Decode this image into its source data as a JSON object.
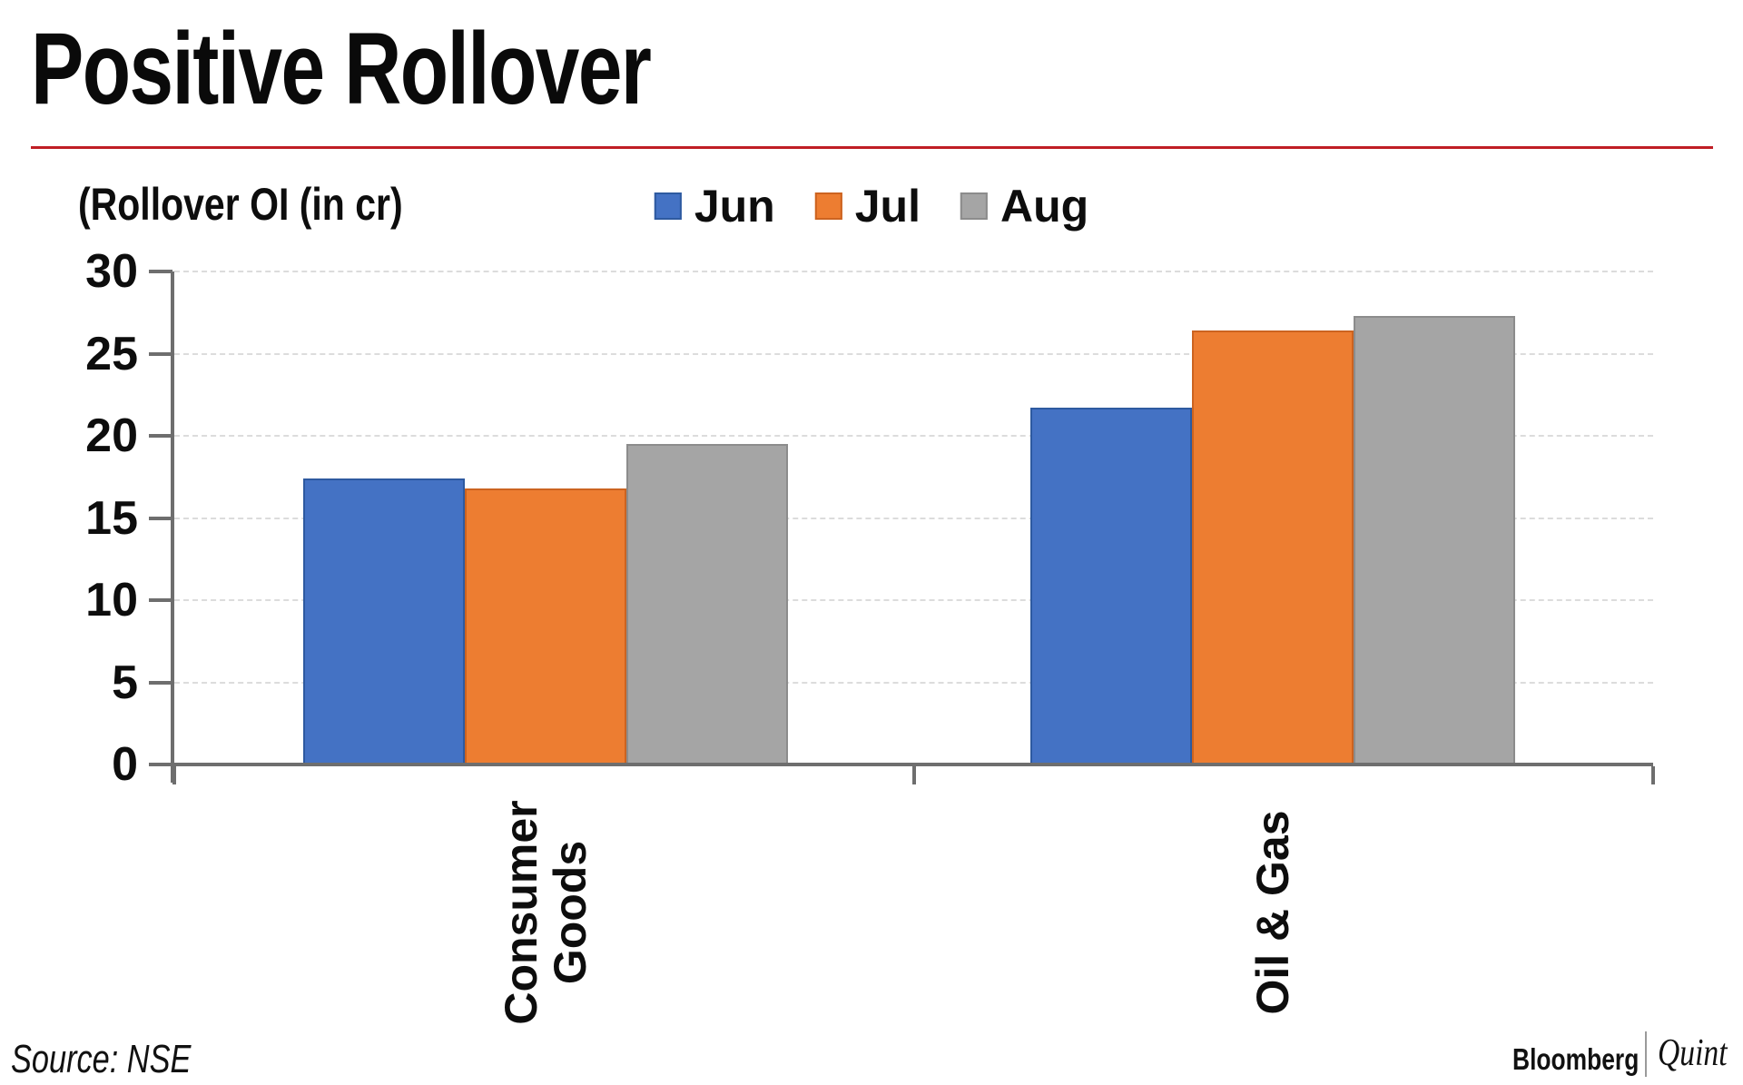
{
  "header": {
    "title": "Positive Rollover",
    "divider_color": "#c01e25"
  },
  "chart_data": {
    "type": "bar",
    "title": "Positive Rollover",
    "ylabel": "(Rollover OI (in cr)",
    "categories": [
      "Consumer Goods",
      "Oil & Gas"
    ],
    "category_label_lines": [
      [
        "Consumer",
        "Goods"
      ],
      [
        "Oil & Gas"
      ]
    ],
    "series": [
      {
        "name": "Jun",
        "color": "#4472c4",
        "border_color": "#2e5aa0",
        "values": [
          17.4,
          21.7
        ]
      },
      {
        "name": "Jul",
        "color": "#ed7d31",
        "border_color": "#cc6320",
        "values": [
          16.8,
          26.4
        ]
      },
      {
        "name": "Aug",
        "color": "#a5a5a5",
        "border_color": "#8c8c8c",
        "values": [
          19.5,
          27.3
        ]
      }
    ],
    "ylim": [
      0,
      30
    ],
    "yticks": [
      30,
      25,
      20,
      15,
      10,
      5,
      0
    ],
    "grid": "horizontal dashed",
    "legend_position": "top"
  },
  "footer": {
    "source": "Source: NSE",
    "brand_left": "Bloomberg",
    "brand_right": "Quint"
  }
}
